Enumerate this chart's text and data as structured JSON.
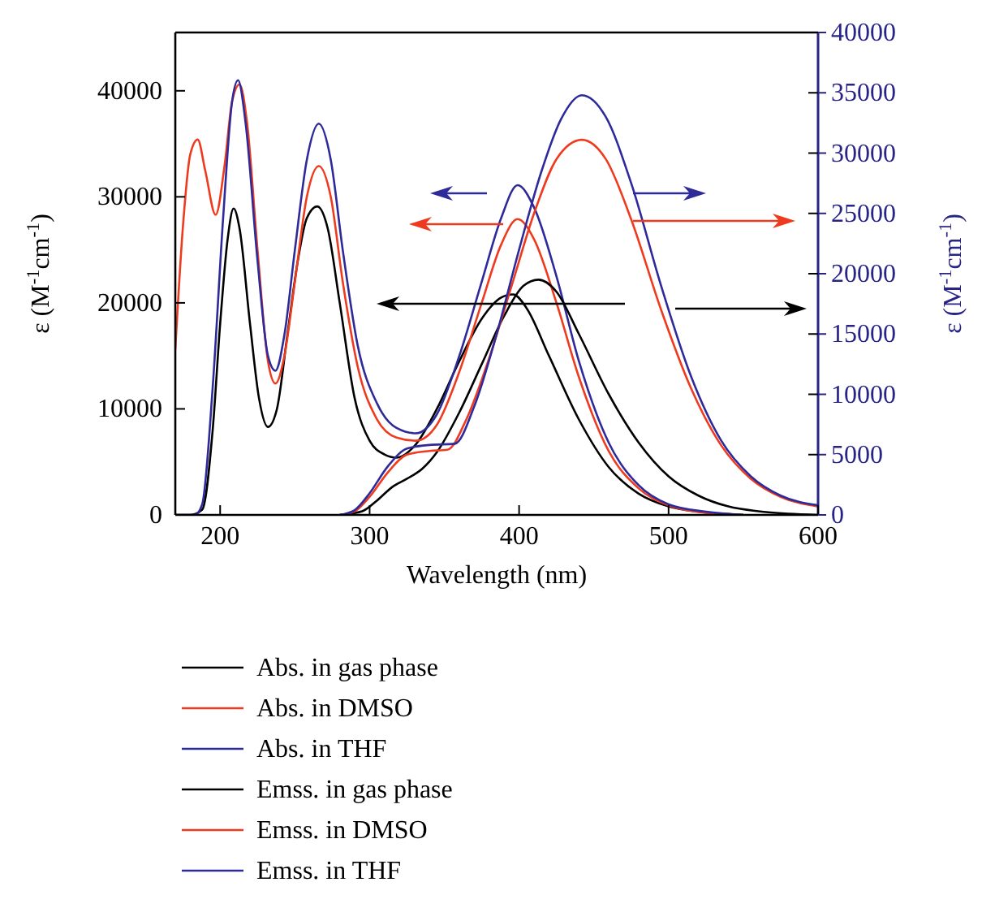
{
  "chart_data": {
    "type": "line",
    "xlabel": "Wavelength (nm)",
    "ylabel": "ε (M$^{-1}$cm$^{-1}$)",
    "y2label": "ε (M$^{-1}$cm$^{-1}$)",
    "xlim": [
      170,
      600
    ],
    "xticks": [
      200,
      300,
      400,
      500,
      600
    ],
    "ylim": [
      0,
      45500
    ],
    "yticks": [
      0,
      10000,
      20000,
      30000,
      40000
    ],
    "y2lim": [
      0,
      40000
    ],
    "y2ticks": [
      0,
      5000,
      10000,
      15000,
      20000,
      25000,
      30000,
      35000,
      40000
    ],
    "grid": false,
    "legend": "bottom",
    "marker": "none",
    "line_style": "solid",
    "series": [
      {
        "name": "Abs. in gas phase",
        "color": "#000000",
        "x": [
          170,
          180,
          188,
          195,
          200,
          205,
          209,
          213,
          220,
          226,
          232,
          238,
          245,
          252,
          258,
          265,
          272,
          280,
          290,
          300,
          310,
          318,
          330,
          345,
          360,
          375,
          388,
          396,
          405,
          420,
          440,
          460,
          480,
          500,
          520,
          550
        ],
        "values": [
          0,
          0,
          500,
          8000,
          18000,
          26000,
          28900,
          27000,
          18000,
          11000,
          8300,
          10000,
          17000,
          24000,
          28000,
          29100,
          27000,
          20000,
          11000,
          7000,
          5700,
          5400,
          6500,
          10000,
          14500,
          18500,
          20500,
          20800,
          19500,
          15000,
          9000,
          4500,
          2000,
          800,
          300,
          0
        ]
      },
      {
        "name": "Abs. in DMSO",
        "color": "#ee3b1f",
        "x": [
          170,
          175,
          180,
          185,
          190,
          197,
          203,
          208,
          213,
          218,
          225,
          232,
          237,
          243,
          250,
          258,
          266,
          274,
          282,
          292,
          305,
          318,
          331,
          345,
          360,
          375,
          388,
          399,
          410,
          425,
          440,
          460,
          480,
          500,
          525,
          550
        ],
        "values": [
          15600,
          27000,
          34000,
          35400,
          32500,
          28300,
          33000,
          39000,
          40600,
          37000,
          25000,
          14500,
          12400,
          15000,
          22000,
          30000,
          32900,
          30000,
          22000,
          14000,
          9000,
          7300,
          7000,
          8500,
          13500,
          20000,
          25500,
          27900,
          26000,
          20000,
          13000,
          6000,
          2500,
          900,
          200,
          0
        ]
      },
      {
        "name": "Abs. in THF",
        "color": "#2e2a9a",
        "x": [
          170,
          183,
          188,
          195,
          202,
          208,
          212,
          217,
          225,
          232,
          237,
          243,
          250,
          258,
          266,
          274,
          282,
          292,
          305,
          318,
          331,
          345,
          360,
          375,
          388,
          399,
          410,
          425,
          440,
          460,
          480,
          500,
          525,
          550
        ],
        "values": [
          0,
          0,
          1000,
          12000,
          28000,
          39000,
          41000,
          37000,
          24000,
          15000,
          13600,
          17000,
          25000,
          33500,
          36900,
          33500,
          25000,
          16000,
          10500,
          8200,
          7700,
          9500,
          15000,
          22000,
          28000,
          31100,
          29000,
          22500,
          14500,
          6800,
          2800,
          1000,
          300,
          0
        ]
      },
      {
        "name": "Emss. in gas phase",
        "color": "#000000",
        "axis": "y2",
        "x": [
          280,
          295,
          305,
          315,
          325,
          335,
          345,
          360,
          375,
          390,
          403,
          413,
          425,
          440,
          460,
          480,
          500,
          520,
          540,
          560,
          580,
          600
        ],
        "values": [
          0,
          300,
          1200,
          2300,
          3000,
          3800,
          5200,
          8500,
          12500,
          16500,
          19000,
          19500,
          18500,
          15000,
          10000,
          6000,
          3200,
          1600,
          700,
          300,
          100,
          0
        ]
      },
      {
        "name": "Emss. in DMSO",
        "color": "#ee3b1f",
        "axis": "y2",
        "x": [
          280,
          290,
          300,
          312,
          325,
          340,
          352,
          365,
          380,
          395,
          410,
          425,
          442,
          458,
          475,
          495,
          515,
          535,
          555,
          575,
          600
        ],
        "values": [
          0,
          300,
          1500,
          3500,
          5000,
          5300,
          5400,
          8000,
          13000,
          19000,
          25000,
          29500,
          31100,
          29500,
          24500,
          17000,
          10500,
          5800,
          3000,
          1500,
          700
        ]
      },
      {
        "name": "Emss. in THF",
        "color": "#2e2a9a",
        "axis": "y2",
        "x": [
          280,
          290,
          300,
          312,
          325,
          340,
          357,
          370,
          385,
          400,
          415,
          428,
          442,
          458,
          475,
          495,
          515,
          535,
          555,
          575,
          600
        ],
        "values": [
          0,
          400,
          1800,
          4000,
          5500,
          5800,
          5900,
          9000,
          15000,
          22000,
          28500,
          32800,
          34800,
          33000,
          27500,
          19000,
          11500,
          6200,
          3200,
          1600,
          800
        ]
      }
    ]
  }
}
